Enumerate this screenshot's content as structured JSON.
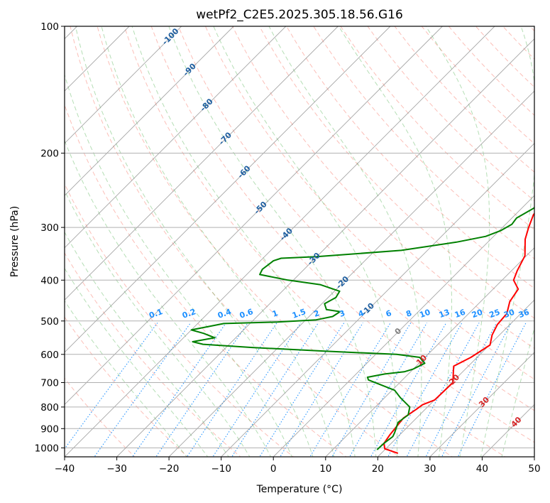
{
  "chart_data": {
    "type": "line",
    "subtype": "skew-t",
    "title": "wetPf2_C2E5.2025.305.18.56.G16",
    "xlabel": "Temperature (°C)",
    "ylabel": "Pressure (hPa)",
    "xlim": [
      -40,
      50
    ],
    "ylim": [
      1050,
      100
    ],
    "y_scale": "log",
    "x_ticks": [
      "−40",
      "−30",
      "−20",
      "−10",
      "0",
      "10",
      "20",
      "30",
      "40",
      "50"
    ],
    "x_tick_values": [
      -40,
      -30,
      -20,
      -10,
      0,
      10,
      20,
      30,
      40,
      50
    ],
    "y_ticks": [
      "100",
      "200",
      "300",
      "400",
      "500",
      "600",
      "700",
      "800",
      "900",
      "1000"
    ],
    "y_tick_values": [
      100,
      200,
      300,
      400,
      500,
      600,
      700,
      800,
      900,
      1000
    ],
    "grid": true,
    "colors": {
      "temperature": "#ff0000",
      "dewpoint": "#008000",
      "isotherm": "#808080",
      "dry_adiabat": "#fa8072",
      "moist_adiabat": "#2ca02c",
      "mixing_ratio": "#1e90ff",
      "label_isotherm_neg": "#1f5fa0",
      "label_isotherm_pos": "#d62728",
      "label_mixing": "#1e90ff"
    },
    "series": [
      {
        "name": "",
        "role": "temperature",
        "points": [
          [
            23.2,
            1030
          ],
          [
            19.8,
            1005
          ],
          [
            18.6,
            975
          ],
          [
            18.1,
            930
          ],
          [
            17.8,
            890
          ],
          [
            17.5,
            850
          ],
          [
            18.3,
            810
          ],
          [
            18.6,
            790
          ],
          [
            20.0,
            770
          ],
          [
            20.2,
            700
          ],
          [
            18.2,
            660
          ],
          [
            17.2,
            640
          ],
          [
            18.8,
            610
          ],
          [
            20.1,
            570
          ],
          [
            18.6,
            540
          ],
          [
            17.6,
            510
          ],
          [
            17.3,
            480
          ],
          [
            15.6,
            450
          ],
          [
            14.8,
            420
          ],
          [
            12.2,
            400
          ],
          [
            11.1,
            380
          ],
          [
            9.7,
            350
          ],
          [
            6.6,
            320
          ],
          [
            5.0,
            300
          ],
          [
            3.5,
            280
          ],
          [
            2.8,
            250
          ],
          [
            0.9,
            215
          ],
          [
            -0.2,
            200
          ],
          [
            0.1,
            185
          ],
          [
            1.0,
            160
          ],
          [
            1.6,
            140
          ],
          [
            2.5,
            125
          ],
          [
            5.1,
            115
          ],
          [
            6.6,
            110
          ],
          [
            7.8,
            104
          ],
          [
            7.8,
            100
          ]
        ]
      },
      {
        "name": "",
        "role": "dewpoint",
        "points": [
          [
            18.5,
            1010
          ],
          [
            18.6,
            975
          ],
          [
            19.0,
            940
          ],
          [
            18.6,
            920
          ],
          [
            17.3,
            870
          ],
          [
            17.8,
            835
          ],
          [
            16.6,
            800
          ],
          [
            13.0,
            760
          ],
          [
            10.5,
            730
          ],
          [
            3.5,
            690
          ],
          [
            2.8,
            680
          ],
          [
            5.5,
            668
          ],
          [
            8.8,
            660
          ],
          [
            10.0,
            650
          ],
          [
            11.1,
            630
          ],
          [
            9.0,
            610
          ],
          [
            4.0,
            600
          ],
          [
            -10.0,
            590
          ],
          [
            -25.0,
            578
          ],
          [
            -35.0,
            568
          ],
          [
            -37.5,
            560
          ],
          [
            -34.0,
            548
          ],
          [
            -37.0,
            535
          ],
          [
            -40.0,
            525
          ],
          [
            -35.0,
            507
          ],
          [
            -25.0,
            503
          ],
          [
            -18.0,
            497
          ],
          [
            -15.5,
            488
          ],
          [
            -15.0,
            475
          ],
          [
            -18.0,
            470
          ],
          [
            -19.5,
            455
          ],
          [
            -18.5,
            440
          ],
          [
            -19.0,
            425
          ],
          [
            -24.0,
            410
          ],
          [
            -31.0,
            400
          ],
          [
            -37.5,
            388
          ],
          [
            -38.0,
            377
          ],
          [
            -37.5,
            360
          ],
          [
            -36.5,
            355
          ],
          [
            -30.0,
            352
          ],
          [
            -15.0,
            340
          ],
          [
            -6.0,
            325
          ],
          [
            -1.5,
            315
          ],
          [
            0.3,
            305
          ],
          [
            1.2,
            295
          ],
          [
            0.9,
            285
          ],
          [
            2.3,
            270
          ],
          [
            2.4,
            260
          ],
          [
            1.8,
            250
          ],
          [
            0.5,
            243
          ],
          [
            -0.5,
            232
          ],
          [
            -1.0,
            225
          ],
          [
            -0.5,
            215
          ],
          [
            0.5,
            205
          ],
          [
            1.0,
            200
          ],
          [
            -0.5,
            192
          ],
          [
            -2.0,
            182
          ],
          [
            -2.5,
            170
          ],
          [
            -1.5,
            155
          ],
          [
            -1.5,
            145
          ],
          [
            -2.7,
            135
          ],
          [
            -3.0,
            125
          ],
          [
            -3.1,
            115
          ],
          [
            -2.0,
            107
          ],
          [
            0.0,
            100
          ]
        ]
      }
    ],
    "isotherm_labels": [
      {
        "t": -100,
        "p": 106,
        "text": "-100",
        "sign": "neg"
      },
      {
        "t": -90,
        "p": 127,
        "text": "-90",
        "sign": "neg"
      },
      {
        "t": -80,
        "p": 154,
        "text": "-80",
        "sign": "neg"
      },
      {
        "t": -70,
        "p": 185,
        "text": "-70",
        "sign": "neg"
      },
      {
        "t": -60,
        "p": 222,
        "text": "-60",
        "sign": "neg"
      },
      {
        "t": -50,
        "p": 270,
        "text": "-50",
        "sign": "neg"
      },
      {
        "t": -40,
        "p": 312,
        "text": "-40",
        "sign": "neg"
      },
      {
        "t": -30,
        "p": 357,
        "text": "-30",
        "sign": "neg"
      },
      {
        "t": -20,
        "p": 406,
        "text": "-20",
        "sign": "neg"
      },
      {
        "t": -10,
        "p": 470,
        "text": "-10",
        "sign": "neg"
      },
      {
        "t": 0,
        "p": 530,
        "text": "0",
        "sign": "zero"
      },
      {
        "t": 10,
        "p": 620,
        "text": "10",
        "sign": "pos"
      },
      {
        "t": 20,
        "p": 690,
        "text": "20",
        "sign": "pos"
      },
      {
        "t": 30,
        "p": 780,
        "text": "30",
        "sign": "pos"
      },
      {
        "t": 40,
        "p": 870,
        "text": "40",
        "sign": "pos"
      }
    ],
    "mixing_ratio_labels": [
      "0.1",
      "0.2",
      "0.4",
      "0.6",
      "1",
      "1.5",
      "2",
      "3",
      "4",
      "6",
      "8",
      "10",
      "13",
      "16",
      "20",
      "25",
      "30",
      "36"
    ],
    "mixing_ratio_values": [
      0.1,
      0.2,
      0.4,
      0.6,
      1,
      1.5,
      2,
      3,
      4,
      6,
      8,
      10,
      13,
      16,
      20,
      25,
      30,
      36
    ],
    "mixing_ratio_label_pressure": 500
  }
}
